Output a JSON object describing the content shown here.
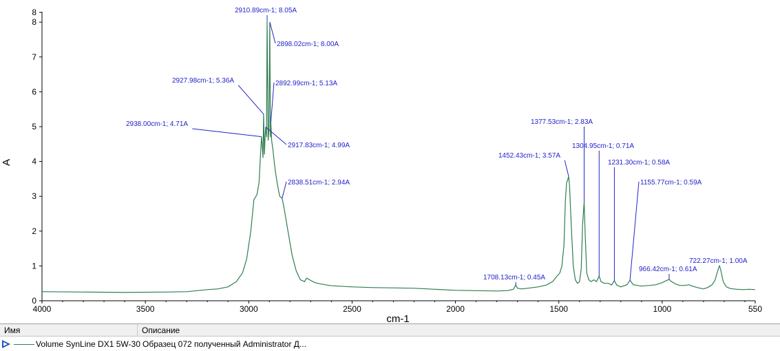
{
  "chart_data": {
    "type": "line",
    "xlabel": "cm-1",
    "ylabel": "A",
    "xlim": [
      4000,
      550
    ],
    "ylim": [
      0,
      8
    ],
    "x_reversed": true,
    "x_ticks": [
      "4000",
      "3500",
      "3000",
      "2500",
      "2000",
      "1500",
      "1000",
      "550"
    ],
    "y_ticks": [
      "0",
      "1",
      "2",
      "3",
      "4",
      "5",
      "6",
      "7",
      "8",
      "8"
    ],
    "line_color": "#2e7d4f",
    "annotation_color": "#2222cc",
    "series": [
      {
        "name": "Volume SynLine DX1 5W-30",
        "points": [
          [
            4000,
            0.26
          ],
          [
            3800,
            0.25
          ],
          [
            3600,
            0.24
          ],
          [
            3400,
            0.25
          ],
          [
            3300,
            0.26
          ],
          [
            3200,
            0.32
          ],
          [
            3150,
            0.34
          ],
          [
            3100,
            0.4
          ],
          [
            3060,
            0.55
          ],
          [
            3030,
            0.8
          ],
          [
            3010,
            1.2
          ],
          [
            2990,
            2.0
          ],
          [
            2975,
            2.9
          ],
          [
            2960,
            3.05
          ],
          [
            2950,
            3.4
          ],
          [
            2942,
            4.3
          ],
          [
            2938,
            4.71
          ],
          [
            2934,
            4.4
          ],
          [
            2931,
            4.1
          ],
          [
            2927.98,
            5.36
          ],
          [
            2924,
            4.2
          ],
          [
            2920,
            4.8
          ],
          [
            2917.83,
            4.99
          ],
          [
            2914,
            4.7
          ],
          [
            2910.89,
            8.05
          ],
          [
            2906,
            4.6
          ],
          [
            2902,
            4.9
          ],
          [
            2898.02,
            8.0
          ],
          [
            2895,
            4.7
          ],
          [
            2892.99,
            5.13
          ],
          [
            2889,
            4.6
          ],
          [
            2882,
            4.3
          ],
          [
            2875,
            3.9
          ],
          [
            2868,
            3.6
          ],
          [
            2860,
            3.3
          ],
          [
            2850,
            3.0
          ],
          [
            2838.51,
            2.94
          ],
          [
            2830,
            2.7
          ],
          [
            2810,
            2.0
          ],
          [
            2790,
            1.3
          ],
          [
            2770,
            0.85
          ],
          [
            2750,
            0.6
          ],
          [
            2730,
            0.55
          ],
          [
            2720,
            0.65
          ],
          [
            2705,
            0.6
          ],
          [
            2680,
            0.52
          ],
          [
            2650,
            0.48
          ],
          [
            2600,
            0.43
          ],
          [
            2500,
            0.4
          ],
          [
            2400,
            0.38
          ],
          [
            2300,
            0.37
          ],
          [
            2200,
            0.36
          ],
          [
            2100,
            0.33
          ],
          [
            2000,
            0.3
          ],
          [
            1900,
            0.29
          ],
          [
            1800,
            0.28
          ],
          [
            1750,
            0.29
          ],
          [
            1720,
            0.33
          ],
          [
            1708.13,
            0.45
          ],
          [
            1700,
            0.36
          ],
          [
            1680,
            0.34
          ],
          [
            1650,
            0.36
          ],
          [
            1600,
            0.4
          ],
          [
            1560,
            0.45
          ],
          [
            1530,
            0.55
          ],
          [
            1510,
            0.7
          ],
          [
            1495,
            0.8
          ],
          [
            1485,
            1.0
          ],
          [
            1475,
            1.6
          ],
          [
            1468,
            2.9
          ],
          [
            1462,
            3.4
          ],
          [
            1458,
            3.45
          ],
          [
            1452.43,
            3.57
          ],
          [
            1448,
            3.3
          ],
          [
            1440,
            2.2
          ],
          [
            1430,
            1.0
          ],
          [
            1420,
            0.6
          ],
          [
            1410,
            0.5
          ],
          [
            1400,
            0.55
          ],
          [
            1392,
            0.9
          ],
          [
            1385,
            2.2
          ],
          [
            1377.53,
            2.83
          ],
          [
            1372,
            1.8
          ],
          [
            1365,
            0.8
          ],
          [
            1355,
            0.6
          ],
          [
            1345,
            0.55
          ],
          [
            1330,
            0.6
          ],
          [
            1318,
            0.55
          ],
          [
            1304.95,
            0.71
          ],
          [
            1296,
            0.55
          ],
          [
            1280,
            0.5
          ],
          [
            1260,
            0.5
          ],
          [
            1245,
            0.45
          ],
          [
            1231.3,
            0.58
          ],
          [
            1220,
            0.45
          ],
          [
            1200,
            0.4
          ],
          [
            1170,
            0.46
          ],
          [
            1155.77,
            0.59
          ],
          [
            1140,
            0.46
          ],
          [
            1100,
            0.42
          ],
          [
            1060,
            0.44
          ],
          [
            1030,
            0.46
          ],
          [
            1000,
            0.52
          ],
          [
            980,
            0.58
          ],
          [
            966.42,
            0.61
          ],
          [
            955,
            0.55
          ],
          [
            935,
            0.48
          ],
          [
            915,
            0.44
          ],
          [
            890,
            0.44
          ],
          [
            870,
            0.46
          ],
          [
            860,
            0.43
          ],
          [
            830,
            0.38
          ],
          [
            800,
            0.34
          ],
          [
            780,
            0.38
          ],
          [
            760,
            0.45
          ],
          [
            745,
            0.58
          ],
          [
            733,
            0.82
          ],
          [
            726,
            0.96
          ],
          [
            722.27,
            1.0
          ],
          [
            716,
            0.86
          ],
          [
            705,
            0.55
          ],
          [
            690,
            0.4
          ],
          [
            670,
            0.35
          ],
          [
            640,
            0.33
          ],
          [
            610,
            0.32
          ],
          [
            580,
            0.33
          ],
          [
            550,
            0.32
          ]
        ]
      }
    ],
    "annotations": [
      {
        "x": 2910.89,
        "y": 8.05,
        "text": "2910.89cm-1; 8.05A"
      },
      {
        "x": 2898.02,
        "y": 8.0,
        "text": "2898.02cm-1; 8.00A"
      },
      {
        "x": 2927.98,
        "y": 5.36,
        "text": "2927.98cm-1; 5.36A"
      },
      {
        "x": 2892.99,
        "y": 5.13,
        "text": "2892.99cm-1; 5.13A"
      },
      {
        "x": 2938.0,
        "y": 4.71,
        "text": "2938.00cm-1; 4.71A"
      },
      {
        "x": 2917.83,
        "y": 4.99,
        "text": "2917.83cm-1; 4.99A"
      },
      {
        "x": 2838.51,
        "y": 2.94,
        "text": "2838.51cm-1; 2.94A"
      },
      {
        "x": 1377.53,
        "y": 2.83,
        "text": "1377.53cm-1; 2.83A"
      },
      {
        "x": 1304.95,
        "y": 0.71,
        "text": "1304.95cm-1; 0.71A"
      },
      {
        "x": 1452.43,
        "y": 3.57,
        "text": "1452.43cm-1; 3.57A"
      },
      {
        "x": 1231.3,
        "y": 0.58,
        "text": "1231.30cm-1; 0.58A"
      },
      {
        "x": 1155.77,
        "y": 0.59,
        "text": "1155.77cm-1; 0.59A"
      },
      {
        "x": 966.42,
        "y": 0.61,
        "text": "966.42cm-1; 0.61A"
      },
      {
        "x": 722.27,
        "y": 1.0,
        "text": "722.27cm-1; 1.00A"
      },
      {
        "x": 1708.13,
        "y": 0.45,
        "text": "1708.13cm-1; 0.45A"
      }
    ]
  },
  "legend": {
    "col_name": "Имя",
    "col_description": "Описание",
    "row_name": "Volume SynLine DX1 5W-30",
    "row_description": "Образец 072 полученный Administrator Д..."
  }
}
